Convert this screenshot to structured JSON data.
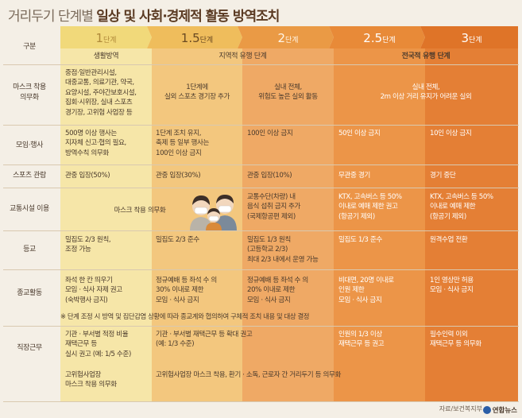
{
  "title": {
    "plain": "거리두기 단계별 ",
    "bold": "일상 및 사회·경제적 활동 방역조치"
  },
  "header": {
    "label": "구분",
    "levels": [
      {
        "num": "1",
        "unit": "단계"
      },
      {
        "num": "1.5",
        "unit": "단계"
      },
      {
        "num": "2",
        "unit": "단계"
      },
      {
        "num": "2.5",
        "unit": "단계"
      },
      {
        "num": "3",
        "unit": "단계"
      }
    ],
    "groups": [
      "생활방역",
      "지역적 유행 단계",
      "전국적 유행 단계"
    ]
  },
  "rows": {
    "mask": {
      "label": [
        "마스크 착용",
        "의무화"
      ],
      "l1": [
        "중점·일반관리시설,",
        "대중교통, 의료기관, 약국,",
        "요양시설, 주야간보호시설,",
        "집회·시위장, 실내 스포츠",
        "경기장, 고위험 사업장 등"
      ],
      "l15": [
        "1단계에",
        "실외 스포츠 경기장 추가"
      ],
      "l2": [
        "실내 전체,",
        "위험도 높은 실외 활동"
      ],
      "l25": [
        "실내 전체,",
        "2m 이상 거리 유지가 어려운 실외"
      ]
    },
    "gathering": {
      "label": [
        "모임·행사"
      ],
      "l1": [
        "500명 이상 행사는",
        "지자체 신고·협의 필요,",
        "방역수칙 의무화"
      ],
      "l15": [
        "1단계 조치 유지,",
        "축제 등 일부 행사는",
        "100인 이상 금지"
      ],
      "l2": [
        "100인 이상 금지"
      ],
      "l25": [
        "50인 이상 금지"
      ],
      "l3": [
        "10인 이상 금지"
      ]
    },
    "sports": {
      "label": [
        "스포츠 관람"
      ],
      "l1": [
        "관중 입장(50%)"
      ],
      "l15": [
        "관중 입장(30%)"
      ],
      "l2": [
        "관중 입장(10%)"
      ],
      "l25": [
        "무관중 경기"
      ],
      "l3": [
        "경기 중단"
      ]
    },
    "transit": {
      "label": [
        "교통시설 이용"
      ],
      "l1": [
        "마스크 착용 의무화"
      ],
      "l2": [
        "교통수단(차량) 내",
        "음식 섭취 금지 추가",
        "(국제항공편 제외)"
      ],
      "l25": [
        "KTX, 고속버스 등 50%",
        "이내로 예매 제한 권고",
        "(항공기 제외)"
      ],
      "l3": [
        "KTX, 고속버스 등 50%",
        "이내로 예매 제한",
        "(항공기 제외)"
      ]
    },
    "school": {
      "label": [
        "등교"
      ],
      "l1": [
        "밀집도 2/3 원칙,",
        "조정 가능"
      ],
      "l15": [
        "밀집도 2/3 준수"
      ],
      "l2": [
        "밀집도 1/3 원칙",
        "(고등학교 2/3)",
        "최대 2/3 내에서 운영 가능"
      ],
      "l25": [
        "밀집도 1/3 준수"
      ],
      "l3": [
        "원격수업 전환"
      ]
    },
    "religion": {
      "label": [
        "종교활동"
      ],
      "l1": [
        "좌석 한 칸 띄우기",
        "모임 · 식사 자제 권고",
        "(숙박행사 금지)"
      ],
      "l15": [
        "정규예배 등 좌석 수 의",
        "30% 이내로 제한",
        "모임 · 식사 금지"
      ],
      "l2": [
        "정규예배 등 좌석 수 의",
        "20% 이내로 제한",
        "모임 · 식사 금지"
      ],
      "l25": [
        "비대면, 20명 이내로",
        "인원 제한",
        "모임 · 식사 금지"
      ],
      "l3": [
        "1인 영상만 허용",
        "모임 · 식사 금지"
      ]
    },
    "note": "※ 단계 조정 시 방역 및 집단감염 상황에 따라 종교계와 협의하여 구체적 조치 내용 및 대상 결정",
    "work": {
      "label": [
        "직장근무"
      ],
      "l1": [
        "기관 · 부서별 적정 비율",
        "재택근무 등",
        "실시 권고 (예: 1/5 수준)"
      ],
      "l15": [
        "기관 · 부서별 재택근무 등 확대 권고",
        "(예: 1/3 수준)"
      ],
      "l25": [
        "인원의 1/3 이상",
        "재택근무 등 권고"
      ],
      "l3": [
        "필수인력 이외",
        "재택근무 등 의무화"
      ],
      "l1b": [
        "고위험사업장",
        "마스크 착용 의무화"
      ],
      "l15b": [
        "고위험사업장 마스크 착용, 환기 · 소독, 근로자 간 거리두기 등 의무화"
      ]
    }
  },
  "footer": {
    "source": "자료/보건복지부",
    "logo": "연합뉴스"
  },
  "colors": {
    "background": "#f4efe6",
    "level1": "#f6e6a8",
    "level1_header": "#f1d97a",
    "level15": "#f3c77e",
    "level15_header": "#efbd5c",
    "level2": "#efa965",
    "level2_header": "#ea9a45",
    "level25": "#ec9548",
    "level25_header": "#e88a38",
    "level3": "#e47f35",
    "level3_header": "#df7428"
  },
  "illustration": "masked-family-icon"
}
